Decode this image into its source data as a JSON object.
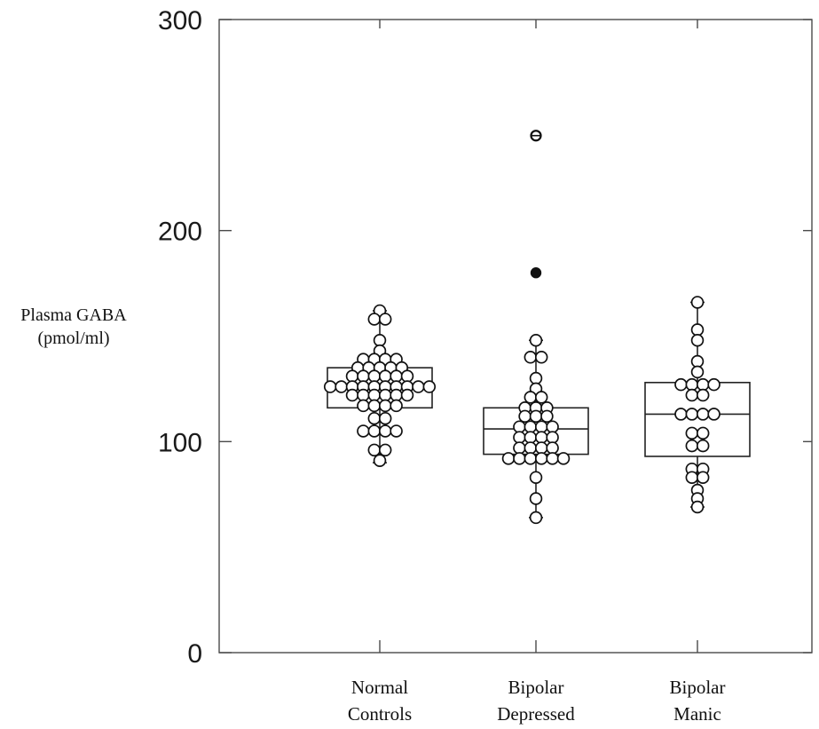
{
  "chart_data": {
    "type": "box",
    "title": "",
    "ylabel": [
      "Plasma GABA",
      "(pmol/ml)"
    ],
    "ylim": [
      0,
      300
    ],
    "yticks": [
      {
        "value": 0,
        "label": "0"
      },
      {
        "value": 100,
        "label": "100"
      },
      {
        "value": 200,
        "label": "200"
      },
      {
        "value": 300,
        "label": "300"
      }
    ],
    "categories": [
      [
        "Normal",
        "Controls"
      ],
      [
        "Bipolar",
        "Depressed"
      ],
      [
        "Bipolar",
        "Manic"
      ]
    ],
    "boxes": [
      {
        "q1": 116,
        "median": 126,
        "q3": 135,
        "whisker_low": 90,
        "whisker_high": 162
      },
      {
        "q1": 94,
        "median": 106,
        "q3": 116,
        "whisker_low": 64,
        "whisker_high": 148
      },
      {
        "q1": 93,
        "median": 113,
        "q3": 128,
        "whisker_low": 69,
        "whisker_high": 166
      }
    ],
    "outliers": [
      {
        "category": 1,
        "value": 245,
        "marker": "circle"
      },
      {
        "category": 1,
        "value": 180,
        "marker": "filled"
      }
    ],
    "points": [
      [
        {
          "y": 162,
          "n": 1
        },
        {
          "y": 158,
          "n": 2
        },
        {
          "y": 148,
          "n": 1
        },
        {
          "y": 143,
          "n": 1
        },
        {
          "y": 139,
          "n": 4
        },
        {
          "y": 135,
          "n": 5
        },
        {
          "y": 131,
          "n": 6
        },
        {
          "y": 126,
          "n": 10
        },
        {
          "y": 122,
          "n": 6
        },
        {
          "y": 117,
          "n": 4
        },
        {
          "y": 111,
          "n": 2
        },
        {
          "y": 105,
          "n": 4
        },
        {
          "y": 96,
          "n": 2
        },
        {
          "y": 91,
          "n": 1
        }
      ],
      [
        {
          "y": 148,
          "n": 1
        },
        {
          "y": 140,
          "n": 2
        },
        {
          "y": 130,
          "n": 1
        },
        {
          "y": 125,
          "n": 1
        },
        {
          "y": 121,
          "n": 2
        },
        {
          "y": 116,
          "n": 3
        },
        {
          "y": 112,
          "n": 3
        },
        {
          "y": 107,
          "n": 4
        },
        {
          "y": 102,
          "n": 4
        },
        {
          "y": 97,
          "n": 4
        },
        {
          "y": 92,
          "n": 6
        },
        {
          "y": 83,
          "n": 1
        },
        {
          "y": 73,
          "n": 1
        },
        {
          "y": 64,
          "n": 1
        }
      ],
      [
        {
          "y": 166,
          "n": 1
        },
        {
          "y": 153,
          "n": 1
        },
        {
          "y": 148,
          "n": 1
        },
        {
          "y": 138,
          "n": 1
        },
        {
          "y": 133,
          "n": 1
        },
        {
          "y": 127,
          "n": 4
        },
        {
          "y": 122,
          "n": 2
        },
        {
          "y": 113,
          "n": 4
        },
        {
          "y": 104,
          "n": 2
        },
        {
          "y": 98,
          "n": 2
        },
        {
          "y": 87,
          "n": 2
        },
        {
          "y": 83,
          "n": 2
        },
        {
          "y": 77,
          "n": 1
        },
        {
          "y": 73,
          "n": 1
        },
        {
          "y": 69,
          "n": 1
        }
      ]
    ]
  }
}
